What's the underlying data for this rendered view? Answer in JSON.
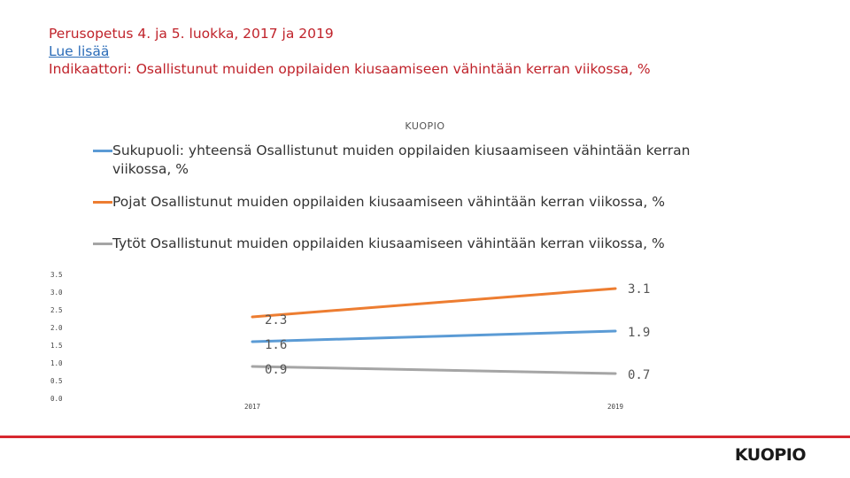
{
  "header": {
    "title": "Perusopetus 4. ja 5. luokka, 2017 ja 2019",
    "link": "Lue lisää",
    "indicator": "Indikaattori: Osallistunut muiden oppilaiden kiusaamiseen vähintään kerran viikossa, %"
  },
  "logo": "KUOPIO",
  "chart_data": {
    "type": "line",
    "title": "KUOPIO",
    "categories": [
      "2017",
      "2019"
    ],
    "ylim": [
      0,
      3.5
    ],
    "yticks": [
      "0.0",
      "0.5",
      "1.0",
      "1.5",
      "2.0",
      "2.5",
      "3.0",
      "3.5"
    ],
    "grid": false,
    "legend_position": "top",
    "series": [
      {
        "name": "Sukupuoli: yhteensä Osallistunut muiden oppilaiden kiusaamiseen vähintään kerran viikossa, %",
        "values": [
          1.6,
          1.9
        ],
        "labels": [
          "1.6",
          "1.9"
        ],
        "color": "#5b9bd5"
      },
      {
        "name": "Pojat Osallistunut muiden oppilaiden kiusaamiseen vähintään kerran viikossa, %",
        "values": [
          2.3,
          3.1
        ],
        "labels": [
          "2.3",
          "3.1"
        ],
        "color": "#ed7d31"
      },
      {
        "name": "Tytöt Osallistunut muiden oppilaiden kiusaamiseen vähintään kerran viikossa, %",
        "values": [
          0.9,
          0.7
        ],
        "labels": [
          "0.9",
          "0.7"
        ],
        "color": "#a5a5a5"
      }
    ]
  }
}
